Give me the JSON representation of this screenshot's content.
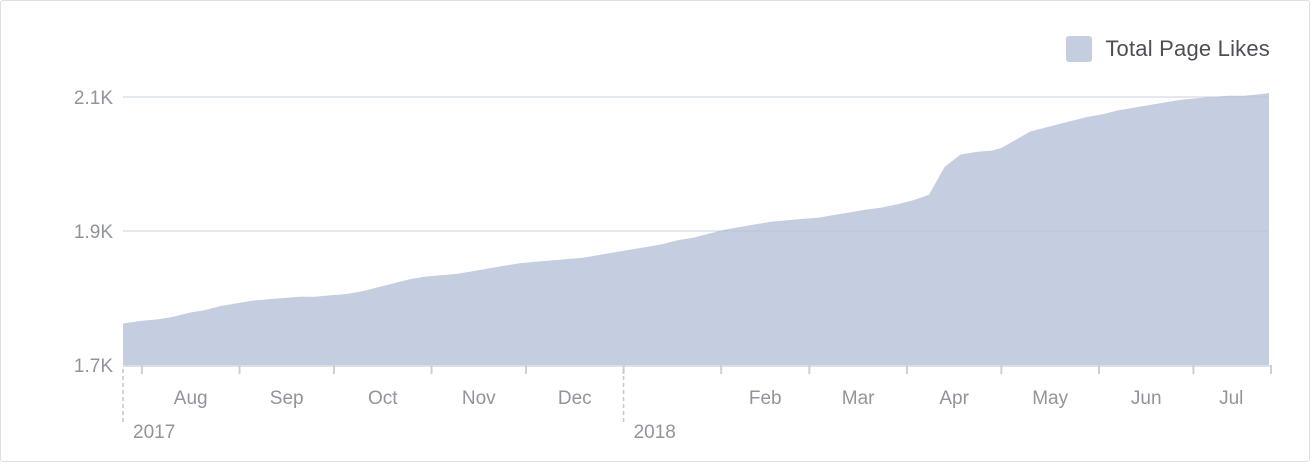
{
  "chart_data": {
    "type": "area",
    "title": "",
    "xlabel": "",
    "ylabel": "",
    "legend": {
      "position": "top-right",
      "entries": [
        {
          "name": "Total Page Likes",
          "color": "#c5cde0"
        }
      ]
    },
    "series": [
      {
        "name": "Total Page Likes",
        "color": "#c5cde0",
        "x": [
          "2017-07-26",
          "2017-08-01",
          "2017-08-06",
          "2017-08-11",
          "2017-08-16",
          "2017-08-21",
          "2017-08-26",
          "2017-08-31",
          "2017-09-05",
          "2017-09-10",
          "2017-09-15",
          "2017-09-20",
          "2017-09-25",
          "2017-09-30",
          "2017-10-05",
          "2017-10-10",
          "2017-10-15",
          "2017-10-20",
          "2017-10-25",
          "2017-10-30",
          "2017-11-04",
          "2017-11-09",
          "2017-11-14",
          "2017-11-19",
          "2017-11-24",
          "2017-11-29",
          "2017-12-04",
          "2017-12-09",
          "2017-12-14",
          "2017-12-19",
          "2017-12-24",
          "2017-12-29",
          "2018-01-03",
          "2018-01-08",
          "2018-01-13",
          "2018-01-18",
          "2018-01-23",
          "2018-01-28",
          "2018-02-02",
          "2018-02-07",
          "2018-02-12",
          "2018-02-17",
          "2018-02-22",
          "2018-02-27",
          "2018-03-04",
          "2018-03-09",
          "2018-03-14",
          "2018-03-19",
          "2018-03-24",
          "2018-03-29",
          "2018-04-03",
          "2018-04-08",
          "2018-04-13",
          "2018-04-18",
          "2018-04-23",
          "2018-04-28",
          "2018-05-01",
          "2018-05-04",
          "2018-05-07",
          "2018-05-10",
          "2018-05-13",
          "2018-05-18",
          "2018-05-23",
          "2018-05-28",
          "2018-06-02",
          "2018-06-07",
          "2018-06-12",
          "2018-06-17",
          "2018-06-22",
          "2018-06-27",
          "2018-07-02",
          "2018-07-07",
          "2018-07-12",
          "2018-07-17",
          "2018-07-22",
          "2018-07-25"
        ],
        "values": [
          1762,
          1766,
          1768,
          1772,
          1778,
          1782,
          1788,
          1792,
          1796,
          1798,
          1800,
          1802,
          1802,
          1804,
          1806,
          1810,
          1816,
          1822,
          1828,
          1832,
          1834,
          1836,
          1840,
          1844,
          1848,
          1852,
          1854,
          1856,
          1858,
          1860,
          1864,
          1868,
          1872,
          1876,
          1880,
          1886,
          1890,
          1896,
          1902,
          1906,
          1910,
          1914,
          1916,
          1918,
          1920,
          1924,
          1928,
          1932,
          1935,
          1940,
          1946,
          1954,
          1996,
          2014,
          2018,
          2020,
          2024,
          2032,
          2040,
          2048,
          2052,
          2058,
          2064,
          2070,
          2074,
          2080,
          2084,
          2088,
          2092,
          2096,
          2098,
          2100,
          2102,
          2102,
          2104,
          2106
        ]
      }
    ],
    "y_axis": {
      "ylim": [
        1700,
        2100
      ],
      "ticks": [
        {
          "value": 1700,
          "label": "1.7K"
        },
        {
          "value": 1900,
          "label": "1.9K"
        },
        {
          "value": 2100,
          "label": "2.1K"
        }
      ],
      "gridlines": true
    },
    "x_axis": {
      "xlim": [
        "2017-07-26",
        "2018-07-25"
      ],
      "ticks": [
        {
          "date": "2017-08-01",
          "label": "Aug"
        },
        {
          "date": "2017-09-01",
          "label": "Sep"
        },
        {
          "date": "2017-10-01",
          "label": "Oct"
        },
        {
          "date": "2017-11-01",
          "label": "Nov"
        },
        {
          "date": "2017-12-01",
          "label": "Dec"
        },
        {
          "date": "2018-01-01",
          "label": ""
        },
        {
          "date": "2018-02-01",
          "label": "Feb"
        },
        {
          "date": "2018-03-01",
          "label": "Mar"
        },
        {
          "date": "2018-04-01",
          "label": "Apr"
        },
        {
          "date": "2018-05-01",
          "label": "May"
        },
        {
          "date": "2018-06-01",
          "label": "Jun"
        },
        {
          "date": "2018-07-01",
          "label": "Jul"
        }
      ],
      "years": [
        {
          "date": "2017-07-26",
          "label": "2017"
        },
        {
          "date": "2018-01-01",
          "label": "2018"
        }
      ]
    }
  }
}
